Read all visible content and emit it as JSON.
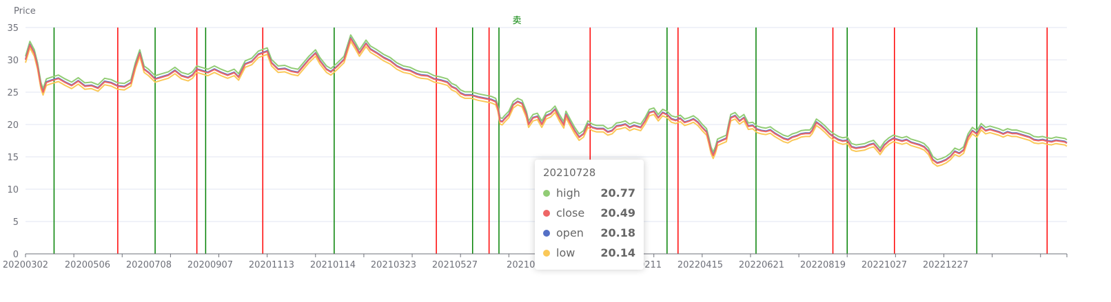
{
  "chart_data": {
    "type": "line",
    "ylabel": "Price",
    "ylim": [
      0,
      35
    ],
    "y_ticks": [
      0,
      5,
      10,
      15,
      20,
      25,
      30,
      35
    ],
    "x_tick_labels": [
      "20200302",
      "20200506",
      "20200708",
      "20200907",
      "20201113",
      "20210114",
      "20210323",
      "20210527",
      "2021072",
      "1206",
      "20220211",
      "20220415",
      "20220621",
      "20220819",
      "20221027",
      "20221227"
    ],
    "grid": true,
    "series": [
      {
        "name": "high",
        "color": "#91cc75"
      },
      {
        "name": "close",
        "color": "#ee6666"
      },
      {
        "name": "open",
        "color": "#5470c6"
      },
      {
        "name": "low",
        "color": "#fac858"
      }
    ],
    "price_path_close": [
      [
        0,
        30.0
      ],
      [
        4,
        32.3
      ],
      [
        8,
        31.0
      ],
      [
        11,
        29.0
      ],
      [
        14,
        26.0
      ],
      [
        16,
        25.0
      ],
      [
        19,
        26.5
      ],
      [
        24,
        26.8
      ],
      [
        30,
        27.1
      ],
      [
        36,
        26.5
      ],
      [
        42,
        26.0
      ],
      [
        48,
        26.7
      ],
      [
        54,
        25.9
      ],
      [
        60,
        26.0
      ],
      [
        66,
        25.6
      ],
      [
        72,
        26.6
      ],
      [
        78,
        26.4
      ],
      [
        84,
        25.9
      ],
      [
        90,
        25.8
      ],
      [
        96,
        26.4
      ],
      [
        100,
        29.0
      ],
      [
        104,
        31.0
      ],
      [
        108,
        28.5
      ],
      [
        112,
        28.0
      ],
      [
        118,
        27.0
      ],
      [
        124,
        27.3
      ],
      [
        130,
        27.6
      ],
      [
        136,
        28.3
      ],
      [
        142,
        27.5
      ],
      [
        148,
        27.2
      ],
      [
        152,
        27.6
      ],
      [
        156,
        28.5
      ],
      [
        160,
        28.3
      ],
      [
        166,
        28.0
      ],
      [
        172,
        28.5
      ],
      [
        178,
        28.0
      ],
      [
        184,
        27.6
      ],
      [
        190,
        28.0
      ],
      [
        194,
        27.3
      ],
      [
        200,
        29.3
      ],
      [
        206,
        29.7
      ],
      [
        212,
        30.8
      ],
      [
        220,
        31.3
      ],
      [
        224,
        29.5
      ],
      [
        230,
        28.5
      ],
      [
        236,
        28.6
      ],
      [
        242,
        28.2
      ],
      [
        248,
        28.0
      ],
      [
        252,
        28.8
      ],
      [
        258,
        30.0
      ],
      [
        264,
        31.0
      ],
      [
        268,
        29.8
      ],
      [
        274,
        28.5
      ],
      [
        278,
        28.1
      ],
      [
        284,
        29.0
      ],
      [
        290,
        30.0
      ],
      [
        296,
        33.3
      ],
      [
        300,
        32.2
      ],
      [
        304,
        31.0
      ],
      [
        310,
        32.5
      ],
      [
        314,
        31.6
      ],
      [
        320,
        31.0
      ],
      [
        326,
        30.3
      ],
      [
        332,
        29.8
      ],
      [
        338,
        29.0
      ],
      [
        344,
        28.5
      ],
      [
        350,
        28.3
      ],
      [
        356,
        27.8
      ],
      [
        360,
        27.6
      ],
      [
        366,
        27.5
      ],
      [
        372,
        27.0
      ],
      [
        378,
        26.8
      ],
      [
        384,
        26.5
      ],
      [
        388,
        25.8
      ],
      [
        392,
        25.5
      ],
      [
        396,
        24.8
      ],
      [
        400,
        24.5
      ],
      [
        406,
        24.5
      ],
      [
        412,
        24.2
      ],
      [
        418,
        24.0
      ],
      [
        424,
        23.8
      ],
      [
        428,
        23.5
      ],
      [
        430,
        22.5
      ],
      [
        432,
        20.5
      ],
      [
        434,
        20.4
      ],
      [
        436,
        20.8
      ],
      [
        440,
        21.5
      ],
      [
        444,
        23.0
      ],
      [
        448,
        23.5
      ],
      [
        452,
        23.2
      ],
      [
        456,
        21.5
      ],
      [
        458,
        20.0
      ],
      [
        462,
        21.0
      ],
      [
        466,
        21.2
      ],
      [
        470,
        20.0
      ],
      [
        474,
        21.3
      ],
      [
        478,
        21.6
      ],
      [
        482,
        22.3
      ],
      [
        486,
        21.0
      ],
      [
        490,
        19.9
      ],
      [
        492,
        21.5
      ],
      [
        496,
        20.2
      ],
      [
        500,
        19.0
      ],
      [
        504,
        18.0
      ],
      [
        508,
        18.5
      ],
      [
        512,
        20.0
      ],
      [
        516,
        19.5
      ],
      [
        520,
        19.3
      ],
      [
        526,
        19.3
      ],
      [
        530,
        18.8
      ],
      [
        534,
        19.0
      ],
      [
        538,
        19.7
      ],
      [
        542,
        19.8
      ],
      [
        546,
        20.0
      ],
      [
        550,
        19.5
      ],
      [
        554,
        19.8
      ],
      [
        560,
        19.5
      ],
      [
        564,
        20.5
      ],
      [
        568,
        21.8
      ],
      [
        572,
        22.0
      ],
      [
        576,
        21.0
      ],
      [
        580,
        21.8
      ],
      [
        584,
        21.5
      ],
      [
        588,
        20.8
      ],
      [
        592,
        20.6
      ],
      [
        596,
        20.9
      ],
      [
        600,
        20.3
      ],
      [
        604,
        20.5
      ],
      [
        608,
        20.8
      ],
      [
        612,
        20.3
      ],
      [
        616,
        19.5
      ],
      [
        620,
        18.8
      ],
      [
        622,
        17.5
      ],
      [
        624,
        16.0
      ],
      [
        626,
        15.2
      ],
      [
        628,
        16.0
      ],
      [
        630,
        17.2
      ],
      [
        634,
        17.5
      ],
      [
        638,
        17.8
      ],
      [
        640,
        19.5
      ],
      [
        642,
        21.0
      ],
      [
        646,
        21.3
      ],
      [
        650,
        20.5
      ],
      [
        654,
        21.0
      ],
      [
        658,
        19.7
      ],
      [
        662,
        19.8
      ],
      [
        666,
        19.2
      ],
      [
        670,
        19.0
      ],
      [
        674,
        18.9
      ],
      [
        678,
        19.1
      ],
      [
        682,
        18.6
      ],
      [
        686,
        18.2
      ],
      [
        690,
        17.8
      ],
      [
        694,
        17.6
      ],
      [
        698,
        18.0
      ],
      [
        702,
        18.2
      ],
      [
        706,
        18.5
      ],
      [
        710,
        18.6
      ],
      [
        714,
        18.6
      ],
      [
        716,
        19.0
      ],
      [
        720,
        20.3
      ],
      [
        724,
        19.8
      ],
      [
        728,
        19.2
      ],
      [
        732,
        18.5
      ],
      [
        736,
        18.0
      ],
      [
        740,
        17.6
      ],
      [
        744,
        17.4
      ],
      [
        748,
        17.5
      ],
      [
        752,
        16.5
      ],
      [
        756,
        16.3
      ],
      [
        760,
        16.4
      ],
      [
        764,
        16.5
      ],
      [
        768,
        16.8
      ],
      [
        772,
        17.0
      ],
      [
        776,
        16.2
      ],
      [
        778,
        15.8
      ],
      [
        782,
        16.8
      ],
      [
        786,
        17.4
      ],
      [
        790,
        17.8
      ],
      [
        794,
        17.6
      ],
      [
        798,
        17.4
      ],
      [
        802,
        17.6
      ],
      [
        806,
        17.2
      ],
      [
        810,
        17.0
      ],
      [
        814,
        16.8
      ],
      [
        818,
        16.5
      ],
      [
        822,
        15.8
      ],
      [
        826,
        14.5
      ],
      [
        830,
        14.0
      ],
      [
        834,
        14.2
      ],
      [
        838,
        14.5
      ],
      [
        842,
        15.0
      ],
      [
        846,
        15.8
      ],
      [
        850,
        15.5
      ],
      [
        854,
        16.0
      ],
      [
        858,
        18.0
      ],
      [
        862,
        19.0
      ],
      [
        866,
        18.5
      ],
      [
        870,
        19.6
      ],
      [
        874,
        19.0
      ],
      [
        878,
        19.2
      ],
      [
        882,
        19.0
      ],
      [
        886,
        18.8
      ],
      [
        890,
        18.5
      ],
      [
        894,
        18.8
      ],
      [
        898,
        18.6
      ],
      [
        902,
        18.6
      ],
      [
        906,
        18.4
      ],
      [
        910,
        18.2
      ],
      [
        914,
        18.0
      ],
      [
        918,
        17.6
      ],
      [
        922,
        17.5
      ],
      [
        926,
        17.6
      ],
      [
        930,
        17.4
      ],
      [
        934,
        17.3
      ],
      [
        938,
        17.5
      ],
      [
        942,
        17.4
      ],
      [
        946,
        17.3
      ],
      [
        948,
        17.1
      ]
    ],
    "tooltip_date": "20210728",
    "tooltip": [
      {
        "name": "high",
        "value": "20.77",
        "color": "#91cc75"
      },
      {
        "name": "close",
        "value": "20.49",
        "color": "#ee6666"
      },
      {
        "name": "open",
        "value": "20.18",
        "color": "#5470c6"
      },
      {
        "name": "low",
        "value": "20.14",
        "color": "#fac858"
      }
    ],
    "signal_label": "卖",
    "buy_signal_index": [
      26,
      118,
      164,
      281,
      407,
      431,
      584,
      665,
      748,
      866
    ],
    "sell_signal_index": [
      84,
      156,
      216,
      374,
      422,
      514,
      594,
      735,
      791,
      930
    ]
  }
}
